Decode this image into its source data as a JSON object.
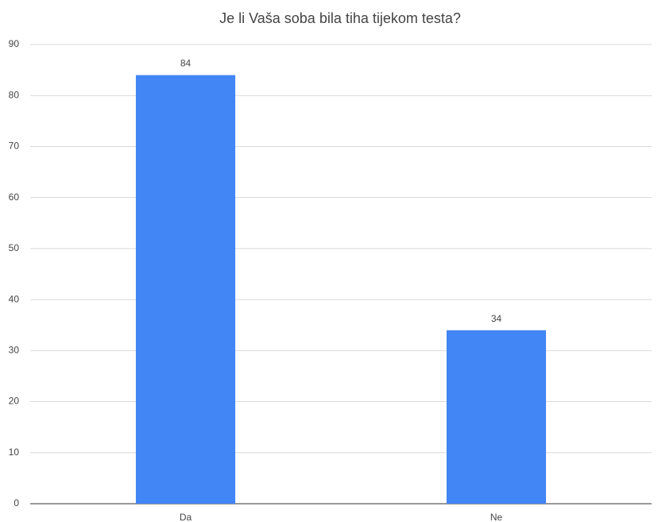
{
  "chart_data": {
    "type": "bar",
    "title": "Je li Vaša soba bila tiha tijekom testa?",
    "categories": [
      "Da",
      "Ne"
    ],
    "values": [
      84,
      34
    ],
    "color": "#4285f4",
    "ylim": [
      0,
      90
    ],
    "yticks": [
      0,
      10,
      20,
      30,
      40,
      50,
      60,
      70,
      80,
      90
    ],
    "grid": true
  }
}
